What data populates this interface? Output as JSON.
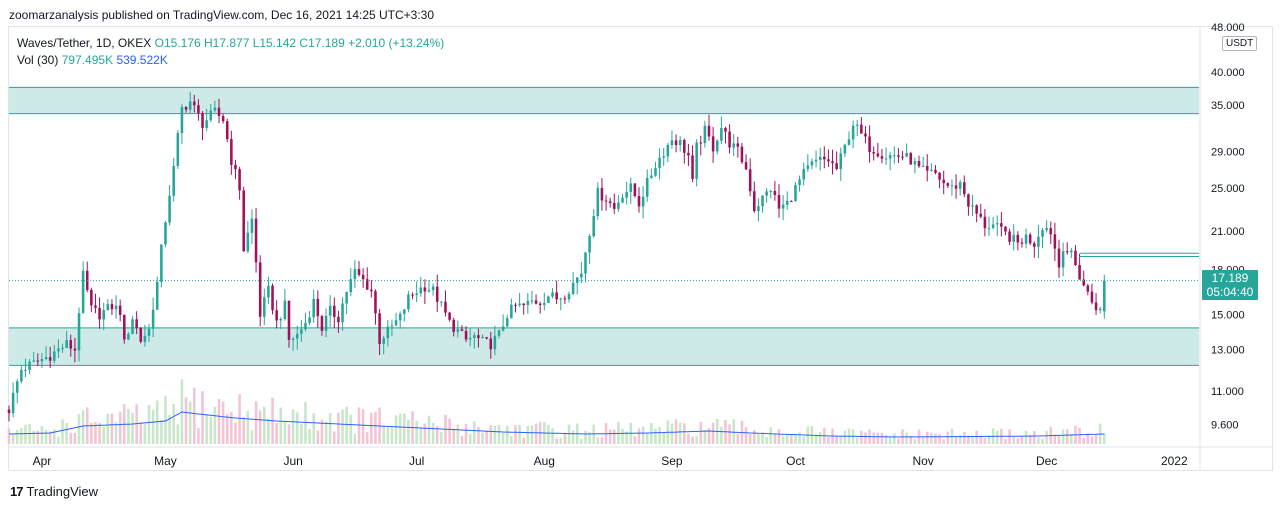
{
  "publisher_line": "zoomarzanalysis published on TradingView.com, Dec 16, 2021 14:25 UTC+3:30",
  "legend": {
    "symbol": "Waves/Tether, 1D, OKEX",
    "ohlc": "O15.176 H17.877 L15.142 C17.189 +2.010 (+13.24%)",
    "volume_label": "Vol (30)",
    "volume_value": "797.495K",
    "volume_ma": "539.522K"
  },
  "currency_badge": "USDT",
  "last_price": {
    "value": "17.189",
    "countdown": "05:04:40"
  },
  "footer": {
    "brand": "TradingView",
    "logo_glyph": "17"
  },
  "colors": {
    "up": "#26a69a",
    "down": "#a1105b",
    "zone_fill": "#b2dfdb",
    "zone_line": "#26a69a",
    "vol_up": "#c8e6c9",
    "vol_down": "#f3c4d4",
    "vol_ma": "#2962ff"
  },
  "chart_data": {
    "type": "candlestick",
    "title": "Waves/Tether, 1D, OKEX",
    "y_scale": "log",
    "ylim": [
      8.8,
      48.0
    ],
    "y_ticks": [
      {
        "value": 48.0,
        "label": "48.000"
      },
      {
        "value": 40.0,
        "label": "40.000"
      },
      {
        "value": 35.0,
        "label": "35.000"
      },
      {
        "value": 29.0,
        "label": "29.000"
      },
      {
        "value": 25.0,
        "label": "25.000"
      },
      {
        "value": 21.0,
        "label": "21.000"
      },
      {
        "value": 18.0,
        "label": "18.000"
      },
      {
        "value": 15.0,
        "label": "15.000"
      },
      {
        "value": 13.0,
        "label": "13.000"
      },
      {
        "value": 11.0,
        "label": "11.000"
      },
      {
        "value": 9.6,
        "label": "9.600"
      }
    ],
    "x_ticks": [
      {
        "day": 8,
        "label": "Apr"
      },
      {
        "day": 38,
        "label": "May"
      },
      {
        "day": 69,
        "label": "Jun"
      },
      {
        "day": 99,
        "label": "Jul"
      },
      {
        "day": 130,
        "label": "Aug"
      },
      {
        "day": 161,
        "label": "Sep"
      },
      {
        "day": 191,
        "label": "Oct"
      },
      {
        "day": 222,
        "label": "Nov"
      },
      {
        "day": 252,
        "label": "Dec"
      },
      {
        "day": 283,
        "label": "2022"
      }
    ],
    "x_range_days": [
      0,
      289
    ],
    "last_day": 266,
    "zones": [
      {
        "name": "resistance",
        "low": 33.8,
        "high": 37.6
      },
      {
        "name": "support",
        "low": 12.2,
        "high": 14.2
      }
    ],
    "horizontal_lines": [
      {
        "value": 19.2,
        "from_day": 260
      },
      {
        "value": 18.95,
        "from_day": 260
      }
    ],
    "last_close": 17.189,
    "anchors": [
      [
        0,
        10.2
      ],
      [
        3,
        12.0
      ],
      [
        6,
        12.3
      ],
      [
        10,
        12.7
      ],
      [
        14,
        13.3
      ],
      [
        16,
        13.0
      ],
      [
        18,
        17.5
      ],
      [
        20,
        15.3
      ],
      [
        22,
        15.0
      ],
      [
        25,
        15.5
      ],
      [
        27,
        15.2
      ],
      [
        28,
        13.3
      ],
      [
        30,
        14.8
      ],
      [
        32,
        13.5
      ],
      [
        34,
        14.1
      ],
      [
        36,
        17.0
      ],
      [
        38,
        22.0
      ],
      [
        40,
        27.0
      ],
      [
        42,
        34.5
      ],
      [
        44,
        35.5
      ],
      [
        47,
        32.5
      ],
      [
        50,
        34.0
      ],
      [
        52,
        33.0
      ],
      [
        54,
        28.0
      ],
      [
        56,
        25.0
      ],
      [
        57,
        19.5
      ],
      [
        59,
        22.0
      ],
      [
        61,
        15.0
      ],
      [
        63,
        16.5
      ],
      [
        65,
        14.5
      ],
      [
        67,
        15.5
      ],
      [
        68,
        13.5
      ],
      [
        70,
        13.8
      ],
      [
        72,
        14.5
      ],
      [
        74,
        15.8
      ],
      [
        76,
        14.2
      ],
      [
        78,
        15.2
      ],
      [
        80,
        14.8
      ],
      [
        82,
        16.5
      ],
      [
        84,
        17.8
      ],
      [
        86,
        17.2
      ],
      [
        88,
        16.5
      ],
      [
        90,
        13.5
      ],
      [
        92,
        14.0
      ],
      [
        95,
        14.8
      ],
      [
        97,
        16.0
      ],
      [
        99,
        16.5
      ],
      [
        101,
        16.8
      ],
      [
        103,
        16.5
      ],
      [
        105,
        15.5
      ],
      [
        107,
        14.5
      ],
      [
        109,
        14.0
      ],
      [
        111,
        13.5
      ],
      [
        113,
        13.7
      ],
      [
        115,
        13.4
      ],
      [
        117,
        13.3
      ],
      [
        119,
        13.8
      ],
      [
        121,
        15.0
      ],
      [
        123,
        15.5
      ],
      [
        125,
        15.5
      ],
      [
        127,
        15.8
      ],
      [
        129,
        15.8
      ],
      [
        131,
        16.2
      ],
      [
        133,
        16.0
      ],
      [
        135,
        16.3
      ],
      [
        137,
        17.0
      ],
      [
        139,
        17.8
      ],
      [
        141,
        21.0
      ],
      [
        143,
        24.5
      ],
      [
        145,
        24.0
      ],
      [
        147,
        23.0
      ],
      [
        149,
        24.5
      ],
      [
        151,
        25.0
      ],
      [
        153,
        23.5
      ],
      [
        155,
        25.5
      ],
      [
        157,
        27.5
      ],
      [
        159,
        29.0
      ],
      [
        161,
        30.5
      ],
      [
        163,
        30.0
      ],
      [
        165,
        28.5
      ],
      [
        166,
        25.5
      ],
      [
        167,
        29.5
      ],
      [
        169,
        31.5
      ],
      [
        171,
        29.5
      ],
      [
        173,
        32.0
      ],
      [
        175,
        30.0
      ],
      [
        177,
        29.0
      ],
      [
        179,
        27.0
      ],
      [
        181,
        23.0
      ],
      [
        183,
        24.0
      ],
      [
        185,
        25.0
      ],
      [
        187,
        23.0
      ],
      [
        189,
        23.5
      ],
      [
        191,
        25.0
      ],
      [
        193,
        26.5
      ],
      [
        195,
        27.5
      ],
      [
        197,
        28.0
      ],
      [
        199,
        28.0
      ],
      [
        201,
        27.0
      ],
      [
        203,
        29.5
      ],
      [
        205,
        32.5
      ],
      [
        207,
        31.0
      ],
      [
        209,
        29.5
      ],
      [
        211,
        29.0
      ],
      [
        213,
        28.5
      ],
      [
        215,
        28.5
      ],
      [
        217,
        28.5
      ],
      [
        219,
        28.0
      ],
      [
        221,
        27.0
      ],
      [
        223,
        26.5
      ],
      [
        225,
        26.5
      ],
      [
        227,
        25.5
      ],
      [
        229,
        25.0
      ],
      [
        231,
        25.5
      ],
      [
        233,
        23.5
      ],
      [
        235,
        22.5
      ],
      [
        237,
        21.5
      ],
      [
        239,
        21.5
      ],
      [
        241,
        21.0
      ],
      [
        243,
        20.5
      ],
      [
        245,
        20.0
      ],
      [
        247,
        20.5
      ],
      [
        249,
        20.0
      ],
      [
        251,
        21.5
      ],
      [
        253,
        21.0
      ],
      [
        255,
        18.2
      ],
      [
        256,
        19.8
      ],
      [
        258,
        19.0
      ],
      [
        260,
        17.5
      ],
      [
        262,
        16.3
      ],
      [
        263,
        15.8
      ],
      [
        264,
        15.5
      ],
      [
        265,
        15.18
      ],
      [
        266,
        17.19
      ]
    ],
    "volume_ma_anchors": [
      [
        0,
        1.0
      ],
      [
        10,
        1.1
      ],
      [
        18,
        1.8
      ],
      [
        30,
        2.0
      ],
      [
        38,
        2.3
      ],
      [
        42,
        3.2
      ],
      [
        46,
        3.0
      ],
      [
        55,
        2.6
      ],
      [
        65,
        2.3
      ],
      [
        80,
        2.0
      ],
      [
        100,
        1.6
      ],
      [
        120,
        1.2
      ],
      [
        140,
        1.0
      ],
      [
        155,
        1.1
      ],
      [
        170,
        1.3
      ],
      [
        180,
        1.1
      ],
      [
        200,
        0.8
      ],
      [
        215,
        0.7
      ],
      [
        235,
        0.75
      ],
      [
        250,
        0.8
      ],
      [
        266,
        1.0
      ]
    ],
    "volume_scale_note": "relative units; 1.0 = typical daily volume"
  }
}
